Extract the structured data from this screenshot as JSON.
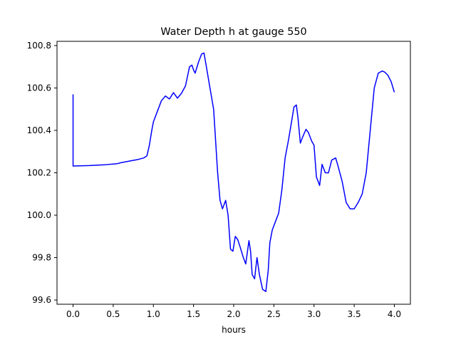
{
  "chart_data": {
    "type": "line",
    "title": "Water Depth h at gauge 550",
    "xlabel": "hours",
    "ylabel": "",
    "xlim": [
      -0.2,
      4.2
    ],
    "ylim": [
      99.58,
      100.82
    ],
    "x_ticks": [
      0.0,
      0.5,
      1.0,
      1.5,
      2.0,
      2.5,
      3.0,
      3.5,
      4.0
    ],
    "x_tick_labels": [
      "0.0",
      "0.5",
      "1.0",
      "1.5",
      "2.0",
      "2.5",
      "3.0",
      "3.5",
      "4.0"
    ],
    "y_ticks": [
      99.6,
      99.8,
      100.0,
      100.2,
      100.4,
      100.6,
      100.8
    ],
    "y_tick_labels": [
      "99.6",
      "99.8",
      "100.0",
      "100.2",
      "100.4",
      "100.6",
      "100.8"
    ],
    "grid": false,
    "series": [
      {
        "color": "#0000ff",
        "x": [
          0.0,
          0.0,
          0.2,
          0.4,
          0.55,
          0.6,
          0.7,
          0.8,
          0.88,
          0.92,
          0.95,
          0.98,
          1.0,
          1.05,
          1.1,
          1.15,
          1.2,
          1.25,
          1.3,
          1.35,
          1.4,
          1.45,
          1.48,
          1.5,
          1.52,
          1.56,
          1.6,
          1.63,
          1.66,
          1.7,
          1.75,
          1.8,
          1.83,
          1.86,
          1.9,
          1.93,
          1.96,
          1.99,
          2.02,
          2.05,
          2.08,
          2.12,
          2.15,
          2.19,
          2.21,
          2.23,
          2.26,
          2.29,
          2.32,
          2.36,
          2.4,
          2.43,
          2.45,
          2.48,
          2.52,
          2.56,
          2.6,
          2.64,
          2.68,
          2.72,
          2.75,
          2.78,
          2.8,
          2.83,
          2.86,
          2.9,
          2.93,
          2.97,
          3.0,
          3.03,
          3.07,
          3.1,
          3.14,
          3.18,
          3.22,
          3.27,
          3.3,
          3.35,
          3.4,
          3.45,
          3.5,
          3.55,
          3.6,
          3.65,
          3.7,
          3.75,
          3.8,
          3.85,
          3.88,
          3.92,
          3.96,
          4.0
        ],
        "y": [
          100.57,
          100.232,
          100.234,
          100.238,
          100.243,
          100.248,
          100.255,
          100.262,
          100.27,
          100.28,
          100.33,
          100.4,
          100.44,
          100.49,
          100.54,
          100.562,
          100.548,
          100.578,
          100.552,
          100.575,
          100.61,
          100.7,
          100.708,
          100.685,
          100.67,
          100.72,
          100.76,
          100.765,
          100.7,
          100.61,
          100.5,
          100.2,
          100.07,
          100.03,
          100.07,
          100.0,
          99.84,
          99.83,
          99.9,
          99.885,
          99.85,
          99.8,
          99.77,
          99.88,
          99.83,
          99.72,
          99.7,
          99.8,
          99.72,
          99.65,
          99.64,
          99.74,
          99.87,
          99.93,
          99.97,
          100.01,
          100.12,
          100.27,
          100.35,
          100.44,
          100.51,
          100.52,
          100.46,
          100.34,
          100.37,
          100.405,
          100.39,
          100.35,
          100.33,
          100.18,
          100.14,
          100.24,
          100.2,
          100.2,
          100.26,
          100.27,
          100.23,
          100.16,
          100.06,
          100.03,
          100.03,
          100.06,
          100.1,
          100.2,
          100.4,
          100.6,
          100.67,
          100.68,
          100.675,
          100.66,
          100.63,
          100.58
        ]
      }
    ]
  }
}
